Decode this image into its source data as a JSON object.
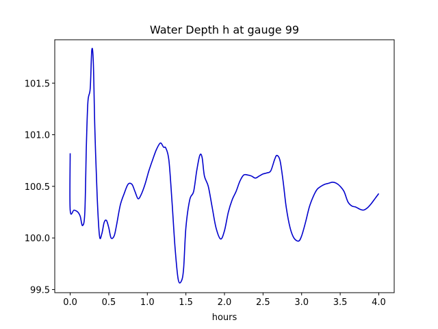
{
  "chart_data": {
    "type": "line",
    "title": "Water Depth h at gauge 99",
    "xlabel": "hours",
    "ylabel": "",
    "xlim": [
      -0.2,
      4.2
    ],
    "ylim": [
      99.47,
      101.92
    ],
    "xticks": [
      0.0,
      0.5,
      1.0,
      1.5,
      2.0,
      2.5,
      3.0,
      3.5,
      4.0
    ],
    "xtick_labels": [
      "0.0",
      "0.5",
      "1.0",
      "1.5",
      "2.0",
      "2.5",
      "3.0",
      "3.5",
      "4.0"
    ],
    "yticks": [
      99.5,
      100.0,
      100.5,
      101.0,
      101.5
    ],
    "ytick_labels": [
      "99.5",
      "100.0",
      "100.5",
      "101.0",
      "101.5"
    ],
    "grid": false,
    "legend": "none",
    "series": [
      {
        "color": "#0000cc",
        "x": [
          0.0,
          0.0,
          0.05,
          0.1,
          0.13,
          0.16,
          0.19,
          0.21,
          0.23,
          0.26,
          0.28,
          0.3,
          0.32,
          0.35,
          0.38,
          0.41,
          0.44,
          0.47,
          0.5,
          0.53,
          0.57,
          0.6,
          0.65,
          0.7,
          0.75,
          0.8,
          0.84,
          0.88,
          0.92,
          0.97,
          1.02,
          1.07,
          1.12,
          1.17,
          1.21,
          1.24,
          1.28,
          1.32,
          1.36,
          1.4,
          1.44,
          1.47,
          1.5,
          1.55,
          1.6,
          1.64,
          1.68,
          1.71,
          1.74,
          1.79,
          1.84,
          1.89,
          1.95,
          2.0,
          2.05,
          2.1,
          2.15,
          2.2,
          2.25,
          2.3,
          2.35,
          2.4,
          2.45,
          2.5,
          2.55,
          2.6,
          2.65,
          2.68,
          2.72,
          2.76,
          2.8,
          2.85,
          2.9,
          2.96,
          3.0,
          3.05,
          3.1,
          3.15,
          3.2,
          3.25,
          3.3,
          3.35,
          3.4,
          3.45,
          3.5,
          3.55,
          3.6,
          3.65,
          3.7,
          3.75,
          3.8,
          3.85,
          3.9,
          3.95,
          4.0
        ],
        "y": [
          100.82,
          100.27,
          100.27,
          100.25,
          100.21,
          100.12,
          100.25,
          100.9,
          101.32,
          101.45,
          101.82,
          101.7,
          101.05,
          100.4,
          100.02,
          100.04,
          100.15,
          100.17,
          100.1,
          100.0,
          100.02,
          100.12,
          100.32,
          100.43,
          100.52,
          100.52,
          100.45,
          100.38,
          100.42,
          100.52,
          100.65,
          100.76,
          100.86,
          100.92,
          100.88,
          100.87,
          100.75,
          100.35,
          99.9,
          99.6,
          99.58,
          99.7,
          100.1,
          100.37,
          100.45,
          100.65,
          100.8,
          100.78,
          100.6,
          100.5,
          100.3,
          100.1,
          99.99,
          100.07,
          100.25,
          100.37,
          100.45,
          100.55,
          100.61,
          100.61,
          100.6,
          100.58,
          100.6,
          100.62,
          100.63,
          100.65,
          100.76,
          100.8,
          100.75,
          100.55,
          100.3,
          100.1,
          100.0,
          99.97,
          100.02,
          100.15,
          100.3,
          100.4,
          100.47,
          100.5,
          100.52,
          100.53,
          100.54,
          100.53,
          100.5,
          100.45,
          100.35,
          100.31,
          100.3,
          100.28,
          100.27,
          100.29,
          100.33,
          100.38,
          100.43
        ]
      }
    ]
  }
}
